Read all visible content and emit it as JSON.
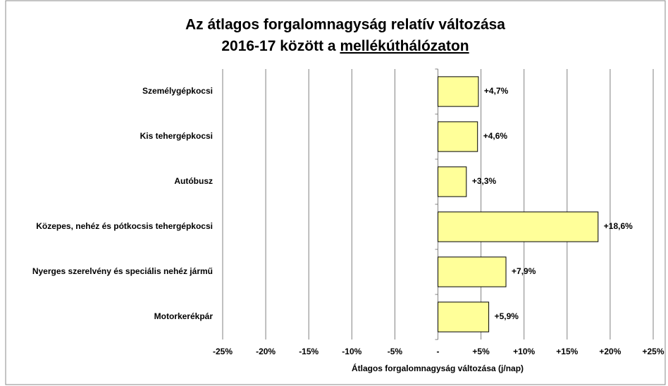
{
  "chart_data": {
    "type": "barh",
    "title": {
      "line1": "Az átlagos forgalomnagyság relatív változása",
      "line2": "2016-17 között a",
      "line2_underlined": "mellékúthálózaton"
    },
    "xlabel": "Átlagos forgalomnagyság változása (j/nap)",
    "categories": [
      "Személygépkocsi",
      "Kis tehergépkocsi",
      "Autóbusz",
      "Közepes, nehéz és pótkocsis tehergépkocsi",
      "Nyerges szerelvény és speciális nehéz jármű",
      "Motorkerékpár"
    ],
    "values": [
      4.7,
      4.6,
      3.3,
      18.6,
      7.9,
      5.9
    ],
    "value_labels": [
      "+4,7%",
      "+4,6%",
      "+3,3%",
      "+18,6%",
      "+7,9%",
      "+5,9%"
    ],
    "color": "#ffff99",
    "negative_tick_color": "#ff0000",
    "xlim": [
      -25,
      25
    ],
    "xticks": [
      {
        "value": -25,
        "label": "-25%"
      },
      {
        "value": -20,
        "label": "-20%"
      },
      {
        "value": -15,
        "label": "-15%"
      },
      {
        "value": -10,
        "label": "-10%"
      },
      {
        "value": -5,
        "label": "-5%"
      },
      {
        "value": 0,
        "label": "-"
      },
      {
        "value": 5,
        "label": "+5%"
      },
      {
        "value": 10,
        "label": "+10%"
      },
      {
        "value": 15,
        "label": "+15%"
      },
      {
        "value": 20,
        "label": "+20%"
      },
      {
        "value": 25,
        "label": "+25%"
      }
    ],
    "grid": true
  }
}
